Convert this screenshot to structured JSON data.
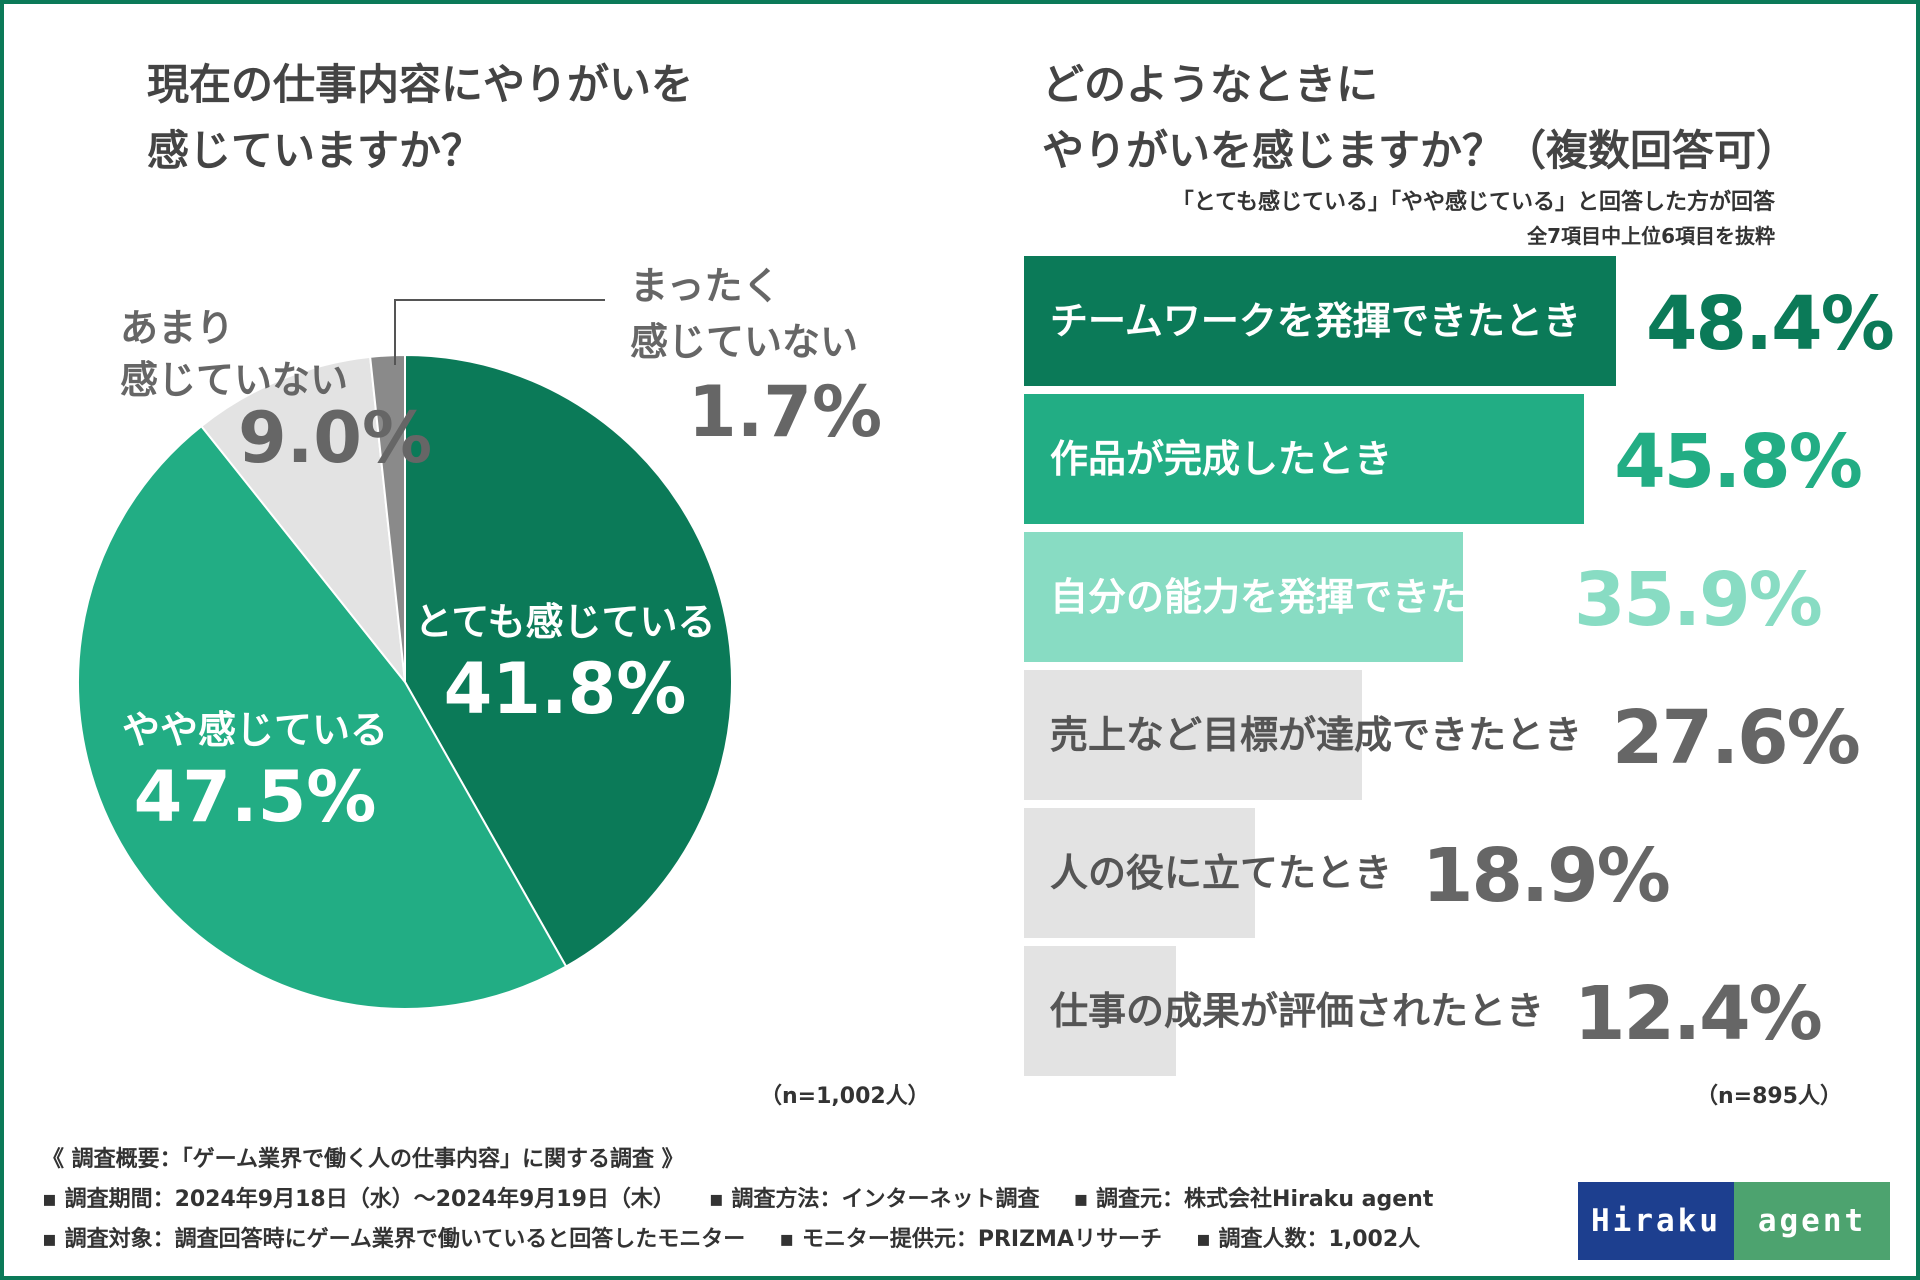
{
  "left": {
    "title_line1": "現在の仕事内容にやりがいを",
    "title_line2": "感じていますか？",
    "sample": "（n=1,002人）"
  },
  "right": {
    "title_line1": "どのようなときに",
    "title_line2": "やりがいを感じますか？（複数回答可）",
    "subtitle1": "「とても感じている」「やや感じている」と回答した方が回答",
    "subtitle2": "全7項目中上位6項目を抜粋",
    "sample": "（n=895人）"
  },
  "chart_data": [
    {
      "type": "pie",
      "title": "現在の仕事内容にやりがいを感じていますか？",
      "labels": [
        "とても感じている",
        "やや感じている",
        "あまり感じていない",
        "まったく感じていない"
      ],
      "values": [
        41.8,
        47.5,
        9.0,
        1.7
      ],
      "value_labels": [
        "41.8%",
        "47.5%",
        "9.0%",
        "1.7%"
      ],
      "colors": [
        "#0b7a58",
        "#22ad84",
        "#e3e3e3",
        "#8a8a8a"
      ],
      "label_lines": {
        "s3": [
          "あまり",
          "感じていない"
        ],
        "s4": [
          "まったく",
          "感じていない"
        ]
      }
    },
    {
      "type": "bar",
      "orientation": "horizontal",
      "title": "どのようなときにやりがいを感じますか？（複数回答可）",
      "categories": [
        "チームワークを発揮できたとき",
        "作品が完成したとき",
        "自分の能力を発揮できたとき",
        "売上など目標が達成できたとき",
        "人の役に立てたとき",
        "仕事の成果が評価されたとき"
      ],
      "values": [
        48.4,
        45.8,
        35.9,
        27.6,
        18.9,
        12.4
      ],
      "value_labels": [
        "48.4%",
        "45.8%",
        "35.9%",
        "27.6%",
        "18.9%",
        "12.4%"
      ],
      "bar_colors": [
        "#0b7a58",
        "#22ad84",
        "#88dcc3",
        "#e3e3e3",
        "#e3e3e3",
        "#e3e3e3"
      ],
      "label_colors": [
        "#ffffff",
        "#ffffff",
        "#ffffff",
        "#555555",
        "#555555",
        "#555555"
      ],
      "value_colors": [
        "#0b7a58",
        "#22ad84",
        "#88dcc3",
        "#666666",
        "#666666",
        "#666666"
      ]
    }
  ],
  "footer": {
    "line1": "《 調査概要：「ゲーム業界で働く人の仕事内容」に関する調査 》",
    "line2a": "▪ 調査期間：2024年9月18日（水）～2024年9月19日（木）",
    "line2b": "▪ 調査方法：インターネット調査",
    "line2c": "▪ 調査元：株式会社Hiraku agent",
    "line3a": "▪ 調査対象：調査回答時にゲーム業界で働いていると回答したモニター",
    "line3b": "▪ モニター提供元：PRIZMAリサーチ",
    "line3c": "▪ 調査人数：1,002人"
  },
  "logo": {
    "left": "Hiraku",
    "right": "agent"
  }
}
